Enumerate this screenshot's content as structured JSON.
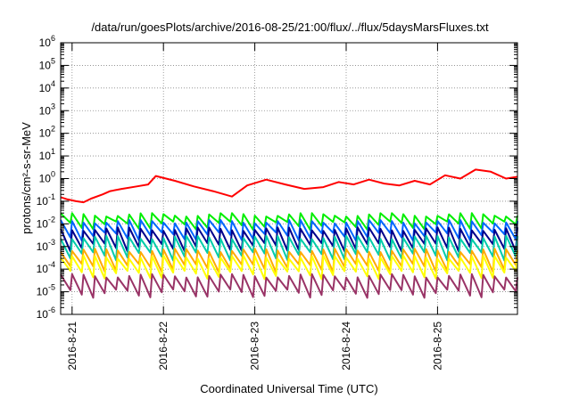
{
  "chart_data": {
    "type": "line",
    "title": "/data/run/goesPlots/archive/2016-08-25/21:00/flux/../flux/5daysMarsFluxes.txt",
    "xlabel": "Coordinated Universal Time (UTC)",
    "ylabel": "protons/cm²-s-sr-MeV",
    "y_scale": "log",
    "ylim": [
      1e-06,
      1000000.0
    ],
    "xlim": [
      "2016-08-20 21:00",
      "2016-08-25 21:00"
    ],
    "grid": true,
    "legend": "none",
    "y_ticks": [
      {
        "value": 1e-06,
        "mantissa": "10",
        "exp": "-6"
      },
      {
        "value": 1e-05,
        "mantissa": "10",
        "exp": "-5"
      },
      {
        "value": 0.0001,
        "mantissa": "10",
        "exp": "-4"
      },
      {
        "value": 0.001,
        "mantissa": "10",
        "exp": "-3"
      },
      {
        "value": 0.01,
        "mantissa": "10",
        "exp": "-2"
      },
      {
        "value": 0.1,
        "mantissa": "10",
        "exp": "-1"
      },
      {
        "value": 1,
        "mantissa": "10",
        "exp": "0"
      },
      {
        "value": 10.0,
        "mantissa": "10",
        "exp": "1"
      },
      {
        "value": 100.0,
        "mantissa": "10",
        "exp": "2"
      },
      {
        "value": 1000.0,
        "mantissa": "10",
        "exp": "3"
      },
      {
        "value": 10000.0,
        "mantissa": "10",
        "exp": "4"
      },
      {
        "value": 100000.0,
        "mantissa": "10",
        "exp": "5"
      },
      {
        "value": 1000000.0,
        "mantissa": "10",
        "exp": "6"
      }
    ],
    "x_ticks": [
      {
        "value": "2016-08-21 00:00",
        "label": "2016-8-21"
      },
      {
        "value": "2016-08-22 00:00",
        "label": "2016-8-22"
      },
      {
        "value": "2016-08-23 00:00",
        "label": "2016-8-23"
      },
      {
        "value": "2016-08-24 00:00",
        "label": "2016-8-24"
      },
      {
        "value": "2016-08-25 00:00",
        "label": "2016-8-25"
      }
    ],
    "series": [
      {
        "color": "#ff0000",
        "x": [
          "2016-08-20 21:00",
          "2016-08-20 22:50",
          "2016-08-21 01:00",
          "2016-08-21 03:00",
          "2016-08-21 05:00",
          "2016-08-21 08:00",
          "2016-08-21 10:00",
          "2016-08-21 13:00",
          "2016-08-21 17:00",
          "2016-08-21 20:00",
          "2016-08-21 22:00",
          "2016-08-22 03:00",
          "2016-08-22 08:00",
          "2016-08-22 13:00",
          "2016-08-22 18:00",
          "2016-08-22 22:00",
          "2016-08-23 03:00",
          "2016-08-23 08:00",
          "2016-08-23 13:00",
          "2016-08-23 18:00",
          "2016-08-23 22:00",
          "2016-08-24 02:00",
          "2016-08-24 06:00",
          "2016-08-24 10:00",
          "2016-08-24 14:00",
          "2016-08-24 18:00",
          "2016-08-24 22:00",
          "2016-08-25 02:00",
          "2016-08-25 06:00",
          "2016-08-25 10:00",
          "2016-08-25 14:00",
          "2016-08-25 18:00",
          "2016-08-25 21:00"
        ],
        "y": [
          0.15,
          0.12,
          0.1,
          0.09,
          0.13,
          0.2,
          0.28,
          0.35,
          0.45,
          0.55,
          1.3,
          0.8,
          0.45,
          0.28,
          0.16,
          0.5,
          0.9,
          0.55,
          0.35,
          0.42,
          0.7,
          0.55,
          0.9,
          0.6,
          0.5,
          0.8,
          0.55,
          1.4,
          1.0,
          2.5,
          2.0,
          1.0,
          1.2
        ]
      },
      {
        "color": "#00ee00",
        "x": [
          "2016-08-20 21:00",
          "2016-08-25 21:00"
        ],
        "y_range": [
          0.009,
          0.03
        ]
      },
      {
        "color": "#0066ff",
        "x": [
          "2016-08-20 21:00",
          "2016-08-25 21:00"
        ],
        "y_range": [
          0.003,
          0.015
        ]
      },
      {
        "color": "#00008b",
        "x": [
          "2016-08-20 21:00",
          "2016-08-25 21:00"
        ],
        "y_range": [
          0.001,
          0.007
        ]
      },
      {
        "color": "#00ccaa",
        "x": [
          "2016-08-20 21:00",
          "2016-08-25 21:00"
        ],
        "y_range": [
          0.0004,
          0.003
        ]
      },
      {
        "color": "#ffaa00",
        "x": [
          "2016-08-20 21:00",
          "2016-08-25 21:00"
        ],
        "y_range": [
          0.00012,
          0.0008
        ]
      },
      {
        "color": "#ffff00",
        "x": [
          "2016-08-20 21:00",
          "2016-08-25 21:00"
        ],
        "y_range": [
          6e-05,
          0.0004
        ]
      },
      {
        "color": "#993366",
        "x": [
          "2016-08-20 21:00",
          "2016-08-25 21:00"
        ],
        "y_range": [
          9e-06,
          6e-05
        ]
      }
    ]
  }
}
